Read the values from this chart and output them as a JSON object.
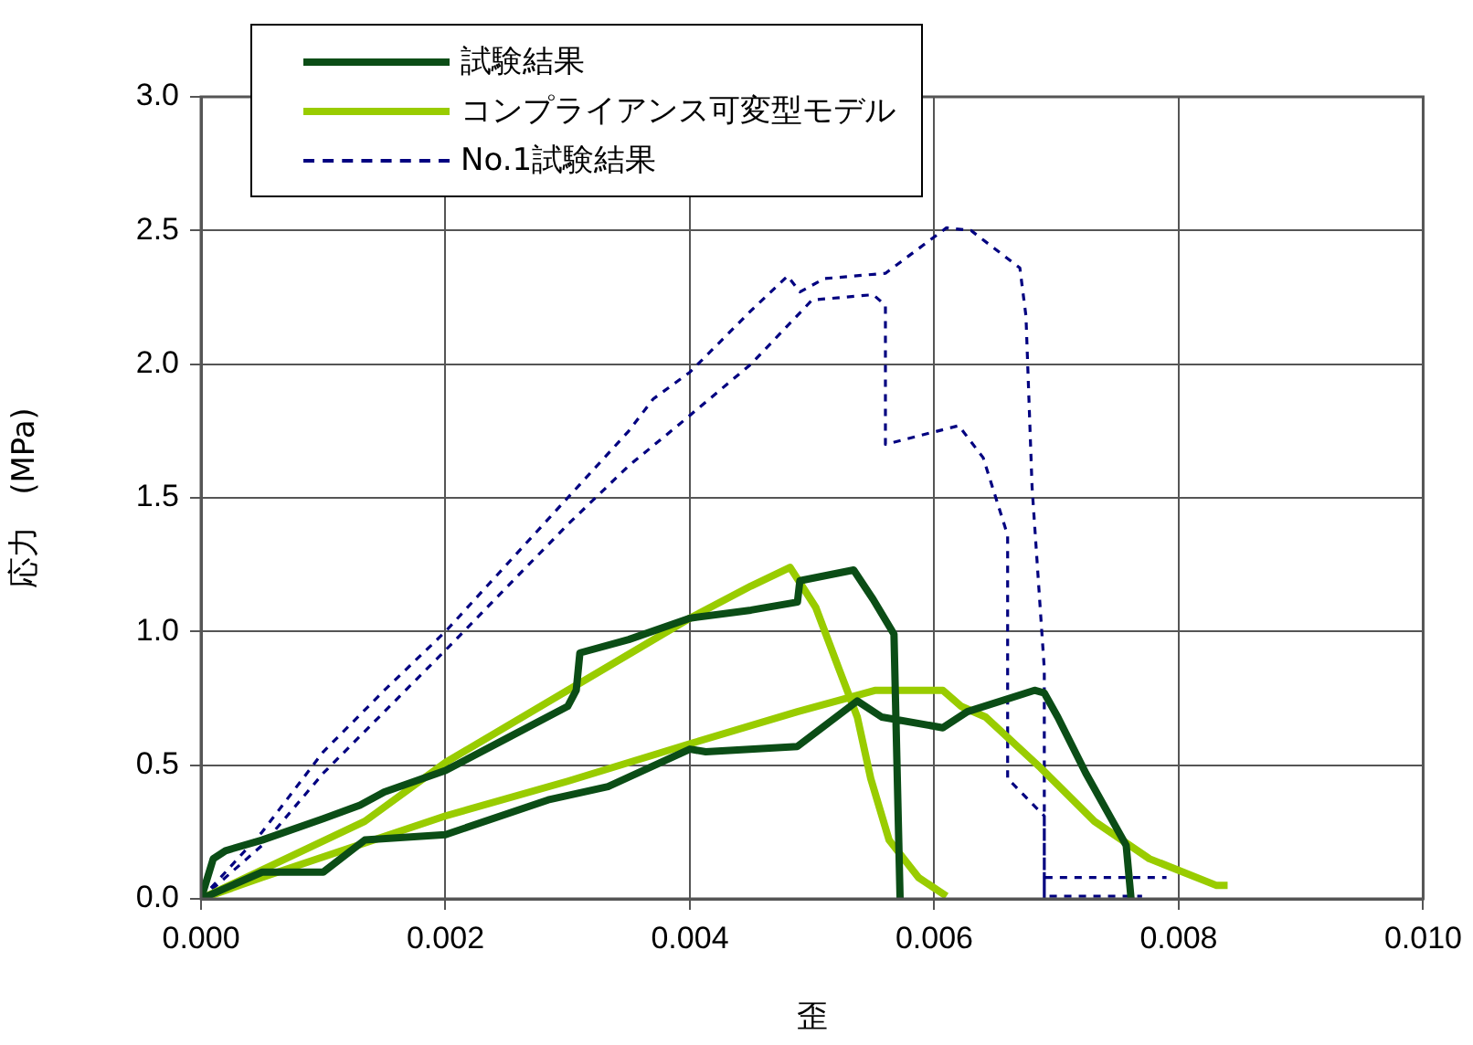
{
  "chart_data": {
    "type": "line",
    "xlabel": "歪",
    "ylabel": "応力　(MPa)",
    "xlim": [
      0,
      0.01
    ],
    "xticks": [
      {
        "value": 0,
        "label": "0.000"
      },
      {
        "value": 0.002,
        "label": "0.002"
      },
      {
        "value": 0.004,
        "label": "0.004"
      },
      {
        "value": 0.006,
        "label": "0.006"
      },
      {
        "value": 0.008,
        "label": "0.008"
      },
      {
        "value": 0.01,
        "label": "0.010"
      }
    ],
    "ylim": [
      0,
      3
    ],
    "yticks": [
      {
        "value": 0,
        "label": "0.0"
      },
      {
        "value": 0.5,
        "label": "0.5"
      },
      {
        "value": 1,
        "label": "1.0"
      },
      {
        "value": 1.5,
        "label": "1.5"
      },
      {
        "value": 2,
        "label": "2.0"
      },
      {
        "value": 2.5,
        "label": "2.5"
      },
      {
        "value": 3,
        "label": "3.0"
      }
    ],
    "grid": true,
    "legend": "top left",
    "marker": "none",
    "series": [
      {
        "name": "試験結果",
        "color": "#0b4d16",
        "line_style": "solid",
        "x": [
          0,
          0.0001,
          0.0002,
          0.0005,
          0.001,
          0.0013,
          0.0015,
          0.002,
          0.0025,
          0.003,
          0.00307,
          0.0031,
          0.0035,
          0.004,
          0.0045,
          0.00488,
          0.0049,
          0.00534,
          0.0055,
          0.00567,
          0.00572,
          null,
          0,
          0.0005,
          0.001,
          0.00134,
          0.002,
          0.00284,
          0.00333,
          0.004,
          0.00413,
          0.00488,
          0.00537,
          0.00557,
          0.00607,
          0.00627,
          0.00682,
          0.0069,
          0.00701,
          0.00724,
          0.00746,
          0.00757,
          0.00761
        ],
        "values": [
          0,
          0.15,
          0.18,
          0.22,
          0.3,
          0.35,
          0.4,
          0.48,
          0.6,
          0.72,
          0.78,
          0.92,
          0.97,
          1.05,
          1.08,
          1.11,
          1.19,
          1.23,
          1.12,
          0.99,
          0,
          null,
          0,
          0.1,
          0.1,
          0.22,
          0.24,
          0.37,
          0.42,
          0.56,
          0.55,
          0.57,
          0.74,
          0.68,
          0.64,
          0.7,
          0.78,
          0.77,
          0.68,
          0.47,
          0.29,
          0.2,
          0
        ]
      },
      {
        "name": "コンプライアンス可変型モデル",
        "color": "#99cc00",
        "line_style": "solid",
        "x": [
          0,
          0.00134,
          0.002,
          0.003,
          0.004,
          0.0045,
          0.00482,
          0.00503,
          0.00522,
          0.00537,
          0.00548,
          0.00563,
          0.00587,
          0.0061,
          null,
          0,
          0.0005,
          0.002,
          0.003,
          0.004,
          0.00488,
          0.00552,
          0.00607,
          0.00622,
          0.00642,
          0.00687,
          0.00731,
          0.00776,
          0.00831,
          0.0084
        ],
        "values": [
          0,
          0.29,
          0.51,
          0.78,
          1.05,
          1.17,
          1.24,
          1.09,
          0.86,
          0.68,
          0.45,
          0.22,
          0.08,
          0.01,
          null,
          0,
          0.08,
          0.31,
          0.44,
          0.58,
          0.7,
          0.78,
          0.78,
          0.72,
          0.68,
          0.49,
          0.29,
          0.15,
          0.05,
          0.05
        ]
      },
      {
        "name": "No.1試験結果",
        "color": "#000080",
        "line_style": "dashed",
        "x": [
          0,
          0.0005,
          0.001,
          0.0015,
          0.002,
          0.0025,
          0.003,
          0.0035,
          0.0037,
          0.004,
          0.0045,
          0.0048,
          0.0049,
          0.0051,
          0.0056,
          0.0061,
          0.0063,
          0.0067,
          0.00675,
          0.0068,
          0.0069,
          0.0069,
          0.0069,
          0.0069,
          0.0079,
          null,
          0,
          0.0005,
          0.001,
          0.002,
          0.003,
          0.0035,
          0.0039,
          0.0045,
          0.005,
          0.0055,
          0.0056,
          0.0056,
          0.0062,
          0.0064,
          0.0066,
          0.0066,
          0.0069,
          0.0069,
          0.0077
        ],
        "values": [
          0,
          0.25,
          0.55,
          0.78,
          1,
          1.25,
          1.5,
          1.75,
          1.87,
          1.97,
          2.2,
          2.33,
          2.27,
          2.32,
          2.34,
          2.51,
          2.5,
          2.36,
          2.18,
          1.54,
          0.86,
          0.29,
          0,
          0.08,
          0.08,
          null,
          0,
          0.2,
          0.47,
          0.93,
          1.4,
          1.62,
          1.77,
          2,
          2.24,
          2.26,
          2.22,
          1.7,
          1.77,
          1.65,
          1.36,
          0.45,
          0.31,
          0.01,
          0.01
        ]
      }
    ]
  }
}
